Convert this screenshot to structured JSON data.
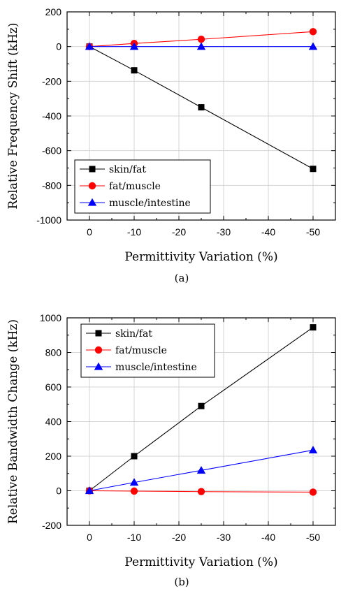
{
  "chart_data": [
    {
      "type": "line",
      "caption": "(a)",
      "xlabel": "Permittivity Variation (%)",
      "ylabel": "Relative Frequency Shift (kHz)",
      "x": [
        0,
        -10,
        -25,
        -50
      ],
      "xlim": [
        5,
        -55
      ],
      "xticks": [
        0,
        -10,
        -20,
        -30,
        -40,
        -50
      ],
      "ylim": [
        -1000,
        200
      ],
      "yticks": [
        -1000,
        -800,
        -600,
        -400,
        -200,
        0,
        200
      ],
      "grid": true,
      "legend_position": "bottom-left",
      "series": [
        {
          "name": "skin/fat",
          "color": "#000000",
          "marker": "square",
          "values": [
            0,
            -137,
            -350,
            -705
          ]
        },
        {
          "name": "fat/muscle",
          "color": "#ff0000",
          "marker": "circle",
          "values": [
            0,
            18,
            42,
            86
          ]
        },
        {
          "name": "muscle/intestine",
          "color": "#0000ff",
          "marker": "triangle",
          "values": [
            0,
            0,
            0,
            0
          ]
        }
      ]
    },
    {
      "type": "line",
      "caption": "(b)",
      "xlabel": "Permittivity Variation (%)",
      "ylabel": "Relative Bandwidth Change (kHz)",
      "x": [
        0,
        -10,
        -25,
        -50
      ],
      "xlim": [
        5,
        -55
      ],
      "xticks": [
        0,
        -10,
        -20,
        -30,
        -40,
        -50
      ],
      "ylim": [
        -200,
        1000
      ],
      "yticks": [
        -200,
        0,
        200,
        400,
        600,
        800,
        1000
      ],
      "grid": true,
      "legend_position": "top-left",
      "series": [
        {
          "name": "skin/fat",
          "color": "#000000",
          "marker": "square",
          "values": [
            0,
            200,
            490,
            945
          ]
        },
        {
          "name": "fat/muscle",
          "color": "#ff0000",
          "marker": "circle",
          "values": [
            0,
            -2,
            -5,
            -8
          ]
        },
        {
          "name": "muscle/intestine",
          "color": "#0000ff",
          "marker": "triangle",
          "values": [
            0,
            48,
            118,
            235
          ]
        }
      ]
    }
  ]
}
